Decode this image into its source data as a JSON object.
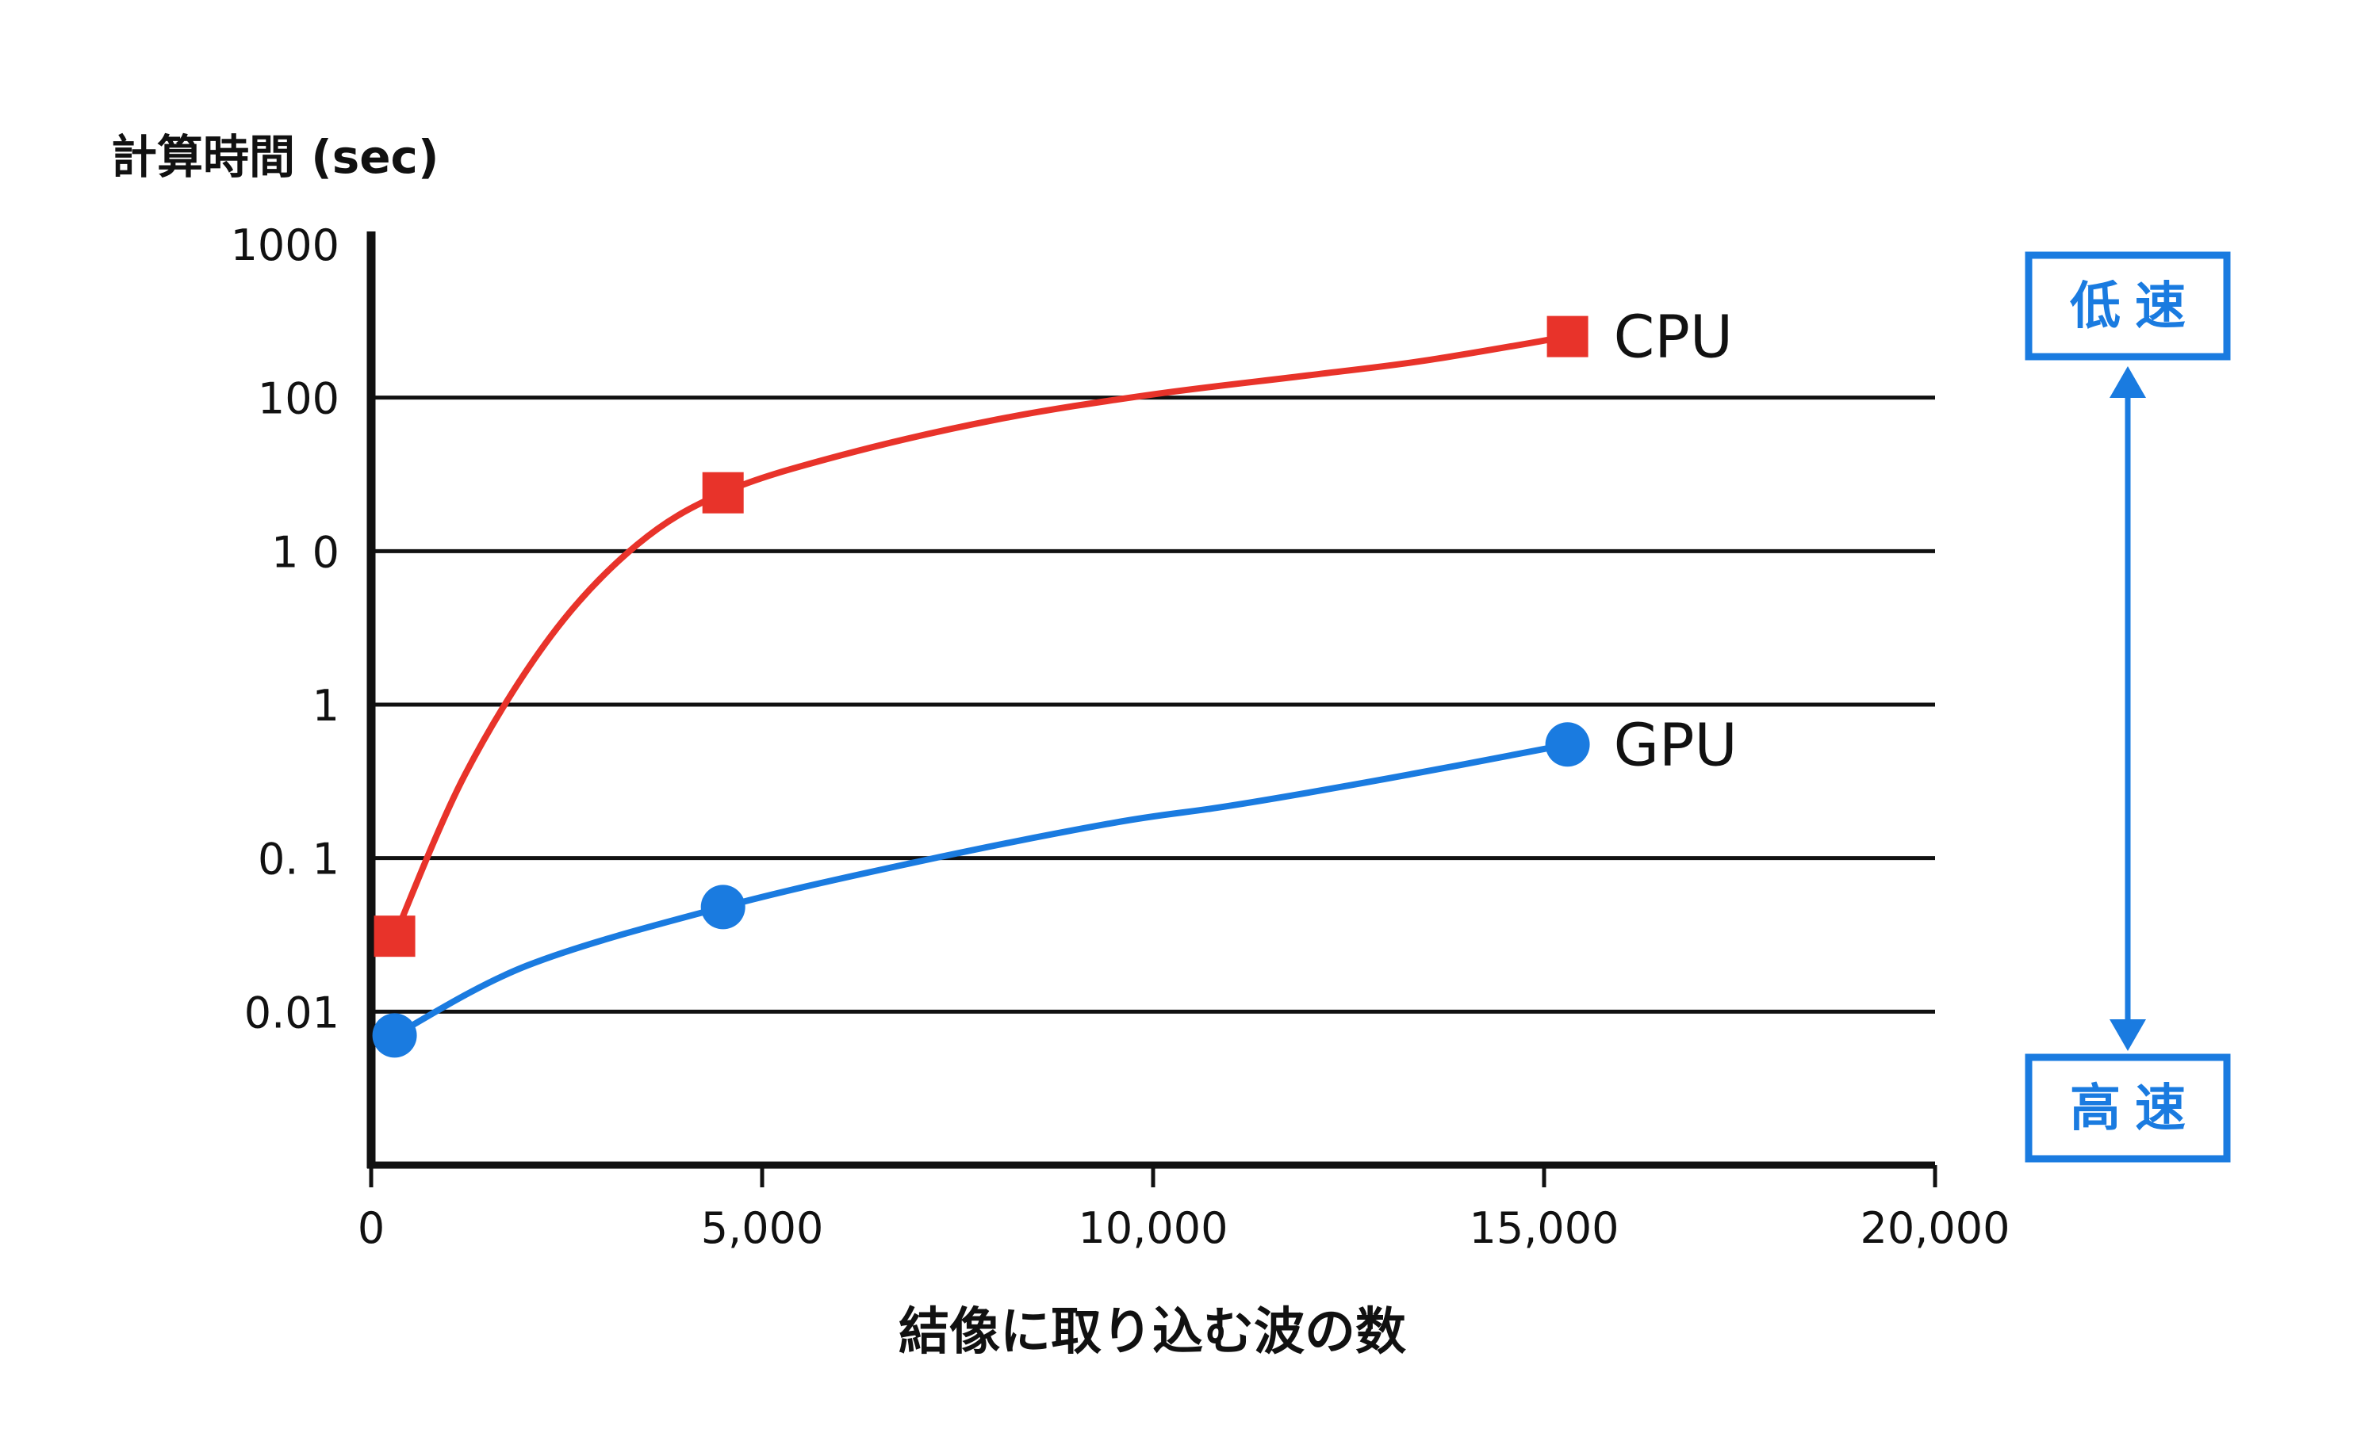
{
  "chart_data": {
    "type": "line",
    "ylabel": "計算時間 (sec)",
    "xlabel": "結像に取り込む波の数",
    "y_scale": "log",
    "ylim": [
      0.001,
      1000
    ],
    "xlim": [
      0,
      20000
    ],
    "y_ticks": [
      {
        "value": 1000,
        "label": "1000"
      },
      {
        "value": 100,
        "label": "100"
      },
      {
        "value": 10,
        "label": "1 0"
      },
      {
        "value": 1,
        "label": "1"
      },
      {
        "value": 0.1,
        "label": "0. 1"
      },
      {
        "value": 0.01,
        "label": "0.01"
      }
    ],
    "x_ticks": [
      {
        "value": 0,
        "label": "0"
      },
      {
        "value": 5000,
        "label": "5,000"
      },
      {
        "value": 10000,
        "label": "10,000"
      },
      {
        "value": 15000,
        "label": "15,000"
      },
      {
        "value": 20000,
        "label": "20,000"
      }
    ],
    "grid": "horizontal",
    "series": [
      {
        "name": "CPU",
        "color": "#e8332a",
        "marker": "square",
        "points": [
          [
            300,
            0.031
          ],
          [
            4500,
            24
          ],
          [
            15300,
            250
          ]
        ],
        "curve": [
          [
            300,
            0.031
          ],
          [
            1200,
            0.35
          ],
          [
            2300,
            2.8
          ],
          [
            3400,
            11
          ],
          [
            4500,
            24
          ],
          [
            6000,
            42
          ],
          [
            8000,
            72
          ],
          [
            10000,
            105
          ],
          [
            12000,
            140
          ],
          [
            13500,
            175
          ],
          [
            15300,
            250
          ]
        ]
      },
      {
        "name": "GPU",
        "color": "#1a7be0",
        "marker": "circle",
        "points": [
          [
            300,
            0.007
          ],
          [
            4500,
            0.048
          ],
          [
            15300,
            0.55
          ]
        ],
        "curve": [
          [
            300,
            0.007
          ],
          [
            2000,
            0.02
          ],
          [
            4500,
            0.048
          ],
          [
            7000,
            0.095
          ],
          [
            9500,
            0.17
          ],
          [
            11000,
            0.22
          ],
          [
            13000,
            0.33
          ],
          [
            15300,
            0.55
          ]
        ]
      }
    ],
    "annotation": {
      "top_label": "低速",
      "bottom_label": "高速",
      "color": "#1a7be0"
    }
  }
}
